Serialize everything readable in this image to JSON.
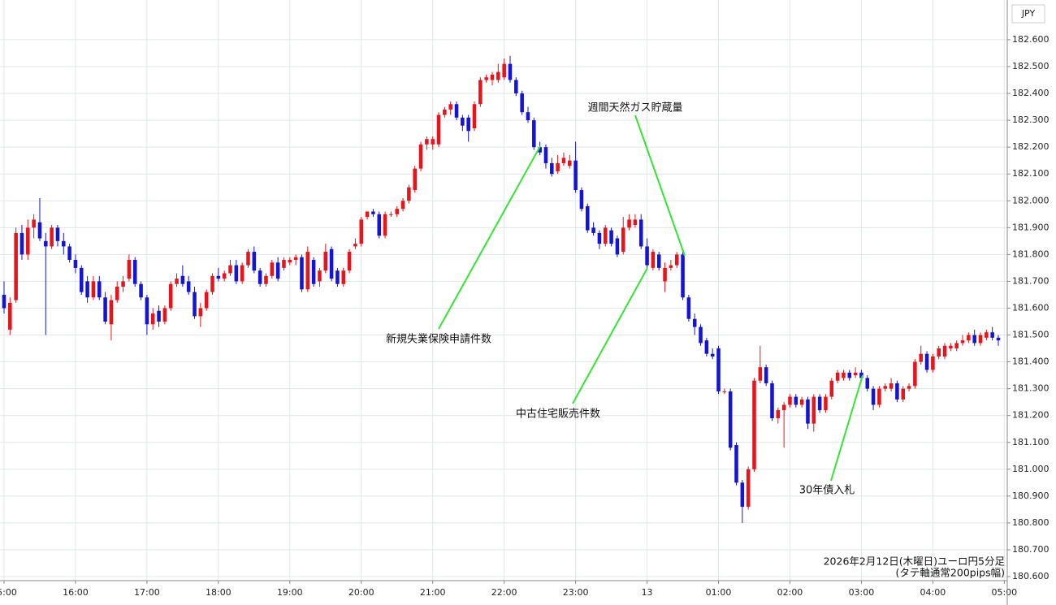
{
  "chart_data": {
    "type": "candlestick",
    "unit": "JPY",
    "notes": [
      "2026年2月12日(木曜日)ユーロ円5分足",
      "(タテ軸通常200pips幅)"
    ],
    "annotations": [
      "新規失業保険申請件数",
      "中古住宅販売件数",
      "週間天然ガス貯蔵量",
      "30年債入札"
    ],
    "up_color": "#e8141b",
    "down_color": "#1414d6",
    "annotation_color": "#33e633",
    "grid": true,
    "xlim": [
      -0.68,
      168.5
    ],
    "xticks": [
      {
        "value": 0,
        "label": "15:00"
      },
      {
        "value": 12,
        "label": "16:00"
      },
      {
        "value": 24,
        "label": "17:00"
      },
      {
        "value": 36,
        "label": "18:00"
      },
      {
        "value": 48,
        "label": "19:00"
      },
      {
        "value": 60,
        "label": "20:00"
      },
      {
        "value": 72,
        "label": "21:00"
      },
      {
        "value": 84,
        "label": "22:00"
      },
      {
        "value": 96,
        "label": "23:00"
      },
      {
        "value": 108,
        "label": "13"
      },
      {
        "value": 120,
        "label": "01:00"
      },
      {
        "value": 132,
        "label": "02:00"
      },
      {
        "value": 144,
        "label": "03:00"
      },
      {
        "value": 156,
        "label": "04:00"
      },
      {
        "value": 168,
        "label": "05:00"
      }
    ],
    "ylim": [
      180.585,
      182.748
    ],
    "yticks": [
      {
        "value": 180.6,
        "label": "180.600"
      },
      {
        "value": 180.7,
        "label": "180.700"
      },
      {
        "value": 180.8,
        "label": "180.800"
      },
      {
        "value": 180.9,
        "label": "180.900"
      },
      {
        "value": 181.0,
        "label": "181.000"
      },
      {
        "value": 181.1,
        "label": "181.100"
      },
      {
        "value": 181.2,
        "label": "181.200"
      },
      {
        "value": 181.3,
        "label": "181.300"
      },
      {
        "value": 181.4,
        "label": "181.400"
      },
      {
        "value": 181.5,
        "label": "181.500"
      },
      {
        "value": 181.6,
        "label": "181.600"
      },
      {
        "value": 181.7,
        "label": "181.700"
      },
      {
        "value": 181.8,
        "label": "181.800"
      },
      {
        "value": 181.9,
        "label": "181.900"
      },
      {
        "value": 182.0,
        "label": "182.000"
      },
      {
        "value": 182.1,
        "label": "182.100"
      },
      {
        "value": 182.2,
        "label": "182.200"
      },
      {
        "value": 182.3,
        "label": "182.300"
      },
      {
        "value": 182.4,
        "label": "182.400"
      },
      {
        "value": 182.5,
        "label": "182.500"
      },
      {
        "value": 182.6,
        "label": "182.600"
      }
    ],
    "ohlc": [
      [
        181.65,
        181.7,
        181.58,
        181.6
      ],
      [
        181.52,
        181.64,
        181.5,
        181.62
      ],
      [
        181.63,
        181.9,
        181.62,
        181.88
      ],
      [
        181.88,
        181.91,
        181.78,
        181.8
      ],
      [
        181.8,
        181.93,
        181.78,
        181.9
      ],
      [
        181.9,
        181.95,
        181.86,
        181.93
      ],
      [
        181.92,
        182.01,
        181.85,
        181.86
      ],
      [
        181.85,
        181.88,
        181.5,
        181.83
      ],
      [
        181.83,
        181.91,
        181.82,
        181.9
      ],
      [
        181.9,
        181.91,
        181.83,
        181.85
      ],
      [
        181.85,
        181.88,
        181.8,
        181.83
      ],
      [
        181.83,
        181.84,
        181.77,
        181.78
      ],
      [
        181.78,
        181.8,
        181.73,
        181.75
      ],
      [
        181.75,
        181.76,
        181.65,
        181.66
      ],
      [
        181.7,
        181.72,
        181.62,
        181.64
      ],
      [
        181.64,
        181.72,
        181.63,
        181.7
      ],
      [
        181.7,
        181.72,
        181.63,
        181.64
      ],
      [
        181.64,
        181.66,
        181.54,
        181.55
      ],
      [
        181.54,
        181.65,
        181.48,
        181.63
      ],
      [
        181.63,
        181.7,
        181.62,
        181.68
      ],
      [
        181.68,
        181.72,
        181.66,
        181.7
      ],
      [
        181.71,
        181.8,
        181.7,
        181.78
      ],
      [
        181.78,
        181.79,
        181.68,
        181.69
      ],
      [
        181.69,
        181.7,
        181.63,
        181.64
      ],
      [
        181.64,
        181.65,
        181.5,
        181.54
      ],
      [
        181.54,
        181.6,
        181.52,
        181.58
      ],
      [
        181.59,
        181.61,
        181.53,
        181.55
      ],
      [
        181.55,
        181.61,
        181.54,
        181.6
      ],
      [
        181.6,
        181.7,
        181.59,
        181.69
      ],
      [
        181.69,
        181.73,
        181.68,
        181.71
      ],
      [
        181.72,
        181.76,
        181.68,
        181.69
      ],
      [
        181.7,
        181.72,
        181.65,
        181.66
      ],
      [
        181.66,
        181.68,
        181.56,
        181.57
      ],
      [
        181.57,
        181.62,
        181.53,
        181.6
      ],
      [
        181.6,
        181.67,
        181.59,
        181.66
      ],
      [
        181.66,
        181.73,
        181.65,
        181.72
      ],
      [
        181.72,
        181.75,
        181.7,
        181.71
      ],
      [
        181.71,
        181.74,
        181.7,
        181.73
      ],
      [
        181.73,
        181.78,
        181.72,
        181.76
      ],
      [
        181.76,
        181.78,
        181.69,
        181.7
      ],
      [
        181.7,
        181.77,
        181.69,
        181.76
      ],
      [
        181.76,
        181.82,
        181.75,
        181.81
      ],
      [
        181.81,
        181.83,
        181.73,
        181.74
      ],
      [
        181.74,
        181.75,
        181.68,
        181.69
      ],
      [
        181.69,
        181.73,
        181.68,
        181.72
      ],
      [
        181.72,
        181.78,
        181.71,
        181.77
      ],
      [
        181.77,
        181.79,
        181.7,
        181.71
      ],
      [
        181.75,
        181.79,
        181.74,
        181.78
      ],
      [
        181.77,
        181.79,
        181.76,
        181.78
      ],
      [
        181.78,
        181.8,
        181.76,
        181.79
      ],
      [
        181.79,
        181.8,
        181.66,
        181.67
      ],
      [
        181.67,
        181.83,
        181.66,
        181.81
      ],
      [
        181.78,
        181.79,
        181.68,
        181.69
      ],
      [
        181.7,
        181.75,
        181.68,
        181.74
      ],
      [
        181.74,
        181.84,
        181.73,
        181.81
      ],
      [
        181.82,
        181.83,
        181.7,
        181.71
      ],
      [
        181.74,
        181.75,
        181.68,
        181.69
      ],
      [
        181.69,
        181.75,
        181.68,
        181.74
      ],
      [
        181.74,
        181.82,
        181.73,
        181.81
      ],
      [
        181.83,
        181.86,
        181.82,
        181.84
      ],
      [
        181.84,
        181.94,
        181.83,
        181.93
      ],
      [
        181.94,
        181.96,
        181.93,
        181.96
      ],
      [
        181.96,
        181.97,
        181.94,
        181.95
      ],
      [
        181.95,
        181.96,
        181.86,
        181.87
      ],
      [
        181.87,
        181.96,
        181.86,
        181.95
      ],
      [
        181.95,
        181.96,
        181.94,
        181.95
      ],
      [
        181.95,
        181.98,
        181.94,
        181.97
      ],
      [
        181.97,
        182.01,
        181.96,
        182.0
      ],
      [
        182.0,
        182.06,
        181.99,
        182.05
      ],
      [
        182.04,
        182.13,
        182.03,
        182.12
      ],
      [
        182.12,
        182.22,
        182.11,
        182.21
      ],
      [
        182.21,
        182.24,
        182.19,
        182.23
      ],
      [
        182.21,
        182.24,
        182.19,
        182.23
      ],
      [
        182.21,
        182.33,
        182.2,
        182.32
      ],
      [
        182.32,
        182.35,
        182.31,
        182.34
      ],
      [
        182.34,
        182.37,
        182.32,
        182.36
      ],
      [
        182.36,
        182.37,
        182.3,
        182.31
      ],
      [
        182.31,
        182.32,
        182.26,
        182.28
      ],
      [
        182.31,
        182.32,
        182.22,
        182.26
      ],
      [
        182.27,
        182.37,
        182.26,
        182.36
      ],
      [
        182.36,
        182.46,
        182.35,
        182.45
      ],
      [
        182.45,
        182.47,
        182.44,
        182.46
      ],
      [
        182.45,
        182.48,
        182.43,
        182.47
      ],
      [
        182.45,
        182.51,
        182.44,
        182.48
      ],
      [
        182.46,
        182.53,
        182.45,
        182.51
      ],
      [
        182.51,
        182.54,
        182.44,
        182.45
      ],
      [
        182.45,
        182.46,
        182.39,
        182.4
      ],
      [
        182.4,
        182.41,
        182.32,
        182.33
      ],
      [
        182.33,
        182.35,
        182.29,
        182.3
      ],
      [
        182.3,
        182.31,
        182.19,
        182.2
      ],
      [
        182.2,
        182.22,
        182.17,
        182.18
      ],
      [
        182.2,
        182.21,
        182.12,
        182.14
      ],
      [
        182.14,
        182.16,
        182.09,
        182.1
      ],
      [
        182.11,
        182.17,
        182.1,
        182.14
      ],
      [
        182.14,
        182.18,
        182.13,
        182.16
      ],
      [
        182.13,
        182.17,
        182.12,
        182.15
      ],
      [
        182.15,
        182.22,
        182.03,
        182.04
      ],
      [
        182.04,
        182.05,
        181.96,
        181.97
      ],
      [
        181.98,
        181.99,
        181.88,
        181.89
      ],
      [
        181.9,
        181.92,
        181.87,
        181.88
      ],
      [
        181.88,
        181.89,
        181.82,
        181.84
      ],
      [
        181.84,
        181.91,
        181.83,
        181.9
      ],
      [
        181.89,
        181.9,
        181.83,
        181.84
      ],
      [
        181.86,
        181.87,
        181.79,
        181.8
      ],
      [
        181.81,
        181.94,
        181.8,
        181.9
      ],
      [
        181.9,
        181.95,
        181.89,
        181.93
      ],
      [
        181.91,
        181.95,
        181.9,
        181.93
      ],
      [
        181.93,
        181.95,
        181.82,
        181.83
      ],
      [
        181.83,
        181.86,
        181.75,
        181.76
      ],
      [
        181.75,
        181.82,
        181.74,
        181.81
      ],
      [
        181.8,
        181.81,
        181.74,
        181.75
      ],
      [
        181.7,
        181.77,
        181.66,
        181.75
      ],
      [
        181.75,
        181.78,
        181.74,
        181.76
      ],
      [
        181.76,
        181.81,
        181.75,
        181.8
      ],
      [
        181.8,
        181.82,
        181.63,
        181.64
      ],
      [
        181.64,
        181.65,
        181.55,
        181.56
      ],
      [
        181.56,
        181.58,
        181.5,
        181.53
      ],
      [
        181.53,
        181.54,
        181.46,
        181.47
      ],
      [
        181.48,
        181.49,
        181.42,
        181.43
      ],
      [
        181.43,
        181.45,
        181.41,
        181.42
      ],
      [
        181.45,
        181.46,
        181.28,
        181.29
      ],
      [
        181.29,
        181.3,
        181.28,
        181.29
      ],
      [
        181.29,
        181.3,
        181.07,
        181.08
      ],
      [
        181.09,
        181.1,
        180.94,
        180.95
      ],
      [
        180.95,
        180.96,
        180.8,
        180.86
      ],
      [
        180.86,
        181.01,
        180.85,
        181.0
      ],
      [
        181.0,
        181.34,
        180.99,
        181.33
      ],
      [
        181.33,
        181.46,
        181.32,
        181.38
      ],
      [
        181.38,
        181.39,
        181.31,
        181.32
      ],
      [
        181.32,
        181.33,
        181.18,
        181.19
      ],
      [
        181.19,
        181.23,
        181.17,
        181.22
      ],
      [
        181.22,
        181.25,
        181.08,
        181.24
      ],
      [
        181.24,
        181.28,
        181.23,
        181.27
      ],
      [
        181.27,
        181.28,
        181.23,
        181.24
      ],
      [
        181.24,
        181.27,
        181.23,
        181.26
      ],
      [
        181.26,
        181.27,
        181.15,
        181.17
      ],
      [
        181.17,
        181.28,
        181.14,
        181.27
      ],
      [
        181.27,
        181.28,
        181.21,
        181.22
      ],
      [
        181.22,
        181.28,
        181.21,
        181.27
      ],
      [
        181.27,
        181.34,
        181.26,
        181.33
      ],
      [
        181.33,
        181.37,
        181.32,
        181.36
      ],
      [
        181.34,
        181.37,
        181.33,
        181.36
      ],
      [
        181.36,
        181.37,
        181.33,
        181.34
      ],
      [
        181.35,
        181.38,
        181.34,
        181.36
      ],
      [
        181.36,
        181.37,
        181.33,
        181.34
      ],
      [
        181.34,
        181.35,
        181.29,
        181.3
      ],
      [
        181.3,
        181.31,
        181.22,
        181.24
      ],
      [
        181.24,
        181.31,
        181.23,
        181.3
      ],
      [
        181.3,
        181.32,
        181.29,
        181.31
      ],
      [
        181.3,
        181.34,
        181.29,
        181.32
      ],
      [
        181.32,
        181.33,
        181.25,
        181.26
      ],
      [
        181.26,
        181.31,
        181.25,
        181.3
      ],
      [
        181.3,
        181.32,
        181.29,
        181.31
      ],
      [
        181.31,
        181.41,
        181.3,
        181.4
      ],
      [
        181.4,
        181.46,
        181.39,
        181.43
      ],
      [
        181.43,
        181.44,
        181.36,
        181.37
      ],
      [
        181.37,
        181.43,
        181.36,
        181.42
      ],
      [
        181.42,
        181.46,
        181.41,
        181.45
      ],
      [
        181.42,
        181.47,
        181.41,
        181.46
      ],
      [
        181.45,
        181.47,
        181.44,
        181.46
      ],
      [
        181.45,
        181.48,
        181.44,
        181.47
      ],
      [
        181.47,
        181.5,
        181.46,
        181.48
      ],
      [
        181.48,
        181.51,
        181.47,
        181.5
      ],
      [
        181.5,
        181.52,
        181.46,
        181.47
      ],
      [
        181.47,
        181.51,
        181.46,
        181.5
      ],
      [
        181.49,
        181.52,
        181.48,
        181.51
      ],
      [
        181.51,
        181.53,
        181.48,
        181.49
      ],
      [
        181.49,
        181.5,
        181.46,
        181.48
      ]
    ]
  }
}
